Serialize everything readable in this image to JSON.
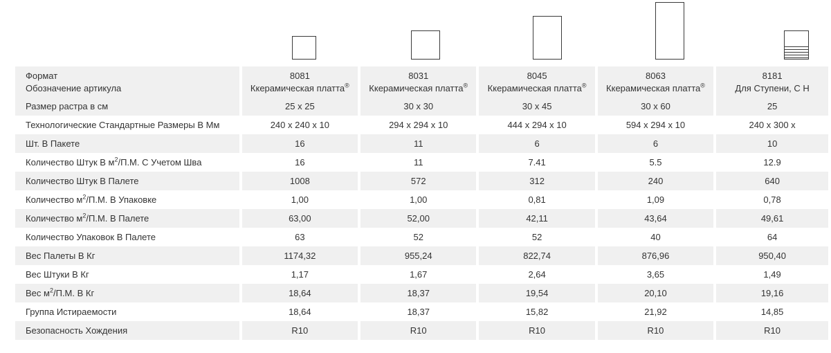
{
  "header": {
    "format_label": "Формат",
    "article_label": "Обозначение артикула",
    "formats": [
      "8081",
      "8031",
      "8045",
      "8063",
      "8181"
    ],
    "articles": [
      "Ккерамическая платта",
      "Ккерамическая платта",
      "Ккерамическая платта",
      "Ккерамическая платта",
      "Для Ступени, С Н"
    ],
    "registered_mark": "®"
  },
  "rows": [
    {
      "label": "Размер растра в см",
      "values": [
        "25 x 25",
        "30 x 30",
        "30 x 45",
        "30 x 60",
        "25"
      ]
    },
    {
      "label": "Технологические Стандартные Размеры В Мм",
      "values": [
        "240 x 240 x 10",
        "294 x 294 x 10",
        "444 x 294 x 10",
        "594 x 294 x 10",
        "240 x 300 x"
      ]
    },
    {
      "label": "Шт. В Пакете",
      "values": [
        "16",
        "11",
        "6",
        "6",
        "10"
      ]
    },
    {
      "label_pre": "Количество Штук В м",
      "label_post": "/П.М. С Учетом Шва",
      "values": [
        "16",
        "11",
        "7.41",
        "5.5",
        "12.9"
      ]
    },
    {
      "label": "Количество Штук В Палете",
      "values": [
        "1008",
        "572",
        "312",
        "240",
        "640"
      ]
    },
    {
      "label_pre": "Количество м",
      "label_post": "/П.М. В Упаковке",
      "values": [
        "1,00",
        "1,00",
        "0,81",
        "1,09",
        "0,78"
      ]
    },
    {
      "label_pre": "Количество м",
      "label_post": "/П.М. В Палете",
      "values": [
        "63,00",
        "52,00",
        "42,11",
        "43,64",
        "49,61"
      ]
    },
    {
      "label": "Количество Упаковок В Палете",
      "values": [
        "63",
        "52",
        "52",
        "40",
        "64"
      ]
    },
    {
      "label": "Вес Палеты В Кг",
      "values": [
        "1174,32",
        "955,24",
        "822,74",
        "876,96",
        "950,40"
      ]
    },
    {
      "label": "Вес Штуки В Кг",
      "values": [
        "1,17",
        "1,67",
        "2,64",
        "3,65",
        "1,49"
      ]
    },
    {
      "label_pre": "Вес м",
      "label_post": "/П.М. В Кг",
      "values": [
        "18,64",
        "18,37",
        "19,54",
        "20,10",
        "19,16"
      ]
    },
    {
      "label": "Группа Истираемости",
      "values": [
        "18,64",
        "18,37",
        "15,82",
        "21,92",
        "14,85"
      ]
    },
    {
      "label": "Безопасность Хождения",
      "values": [
        "R10",
        "R10",
        "R10",
        "R10",
        "R10"
      ]
    }
  ],
  "superscript": "2",
  "tile_icons": [
    "square-tile-25x25-icon",
    "square-tile-30x30-icon",
    "rectangle-tile-30x45-icon",
    "rectangle-tile-30x60-icon",
    "stair-tile-icon"
  ]
}
